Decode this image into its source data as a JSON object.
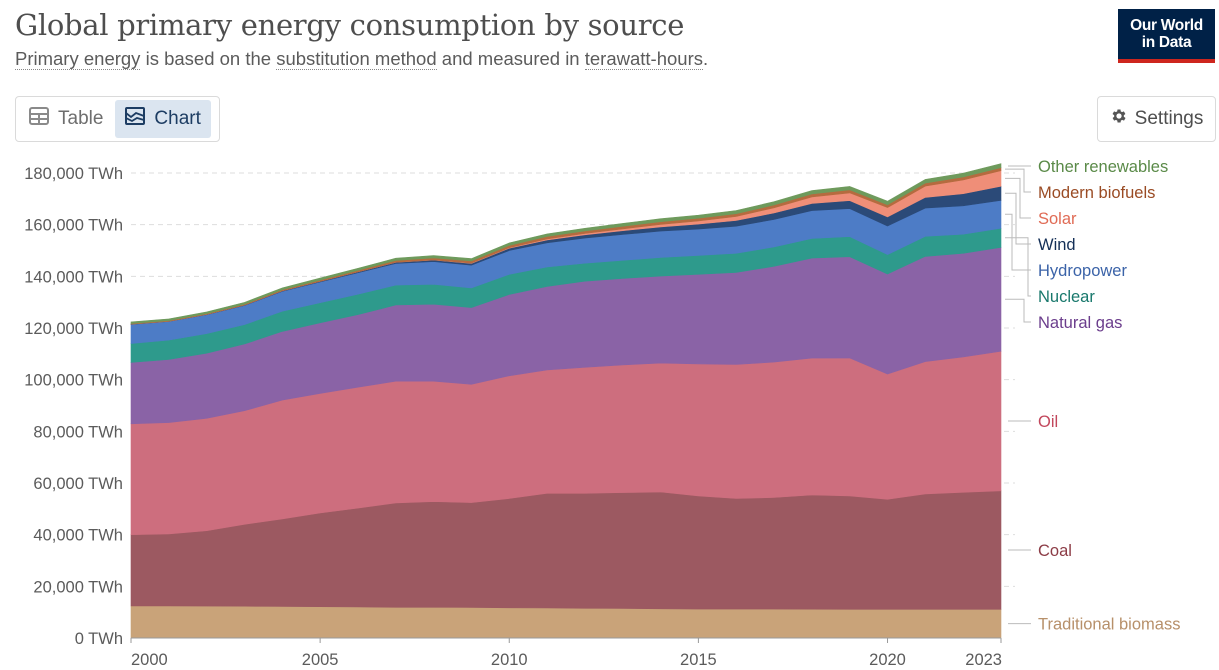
{
  "header": {
    "title": "Global primary energy consumption by source",
    "subtitle_parts": [
      "Primary energy",
      " is based on the ",
      "substitution method",
      " and measured in ",
      "terawatt-hours",
      "."
    ]
  },
  "logo": {
    "line1": "Our World",
    "line2": "in Data"
  },
  "tabs": [
    {
      "label": "Table",
      "icon": "table-icon",
      "active": false
    },
    {
      "label": "Chart",
      "icon": "chart-icon",
      "active": true
    }
  ],
  "settings": {
    "label": "Settings",
    "icon": "gear-icon"
  },
  "chart_data": {
    "type": "area",
    "stacked": true,
    "x": [
      2000,
      2001,
      2002,
      2003,
      2004,
      2005,
      2006,
      2007,
      2008,
      2009,
      2010,
      2011,
      2012,
      2013,
      2014,
      2015,
      2016,
      2017,
      2018,
      2019,
      2020,
      2021,
      2022,
      2023
    ],
    "xticks": [
      2000,
      2005,
      2010,
      2015,
      2020,
      2023
    ],
    "ylim": [
      0,
      180000
    ],
    "yticks": [
      0,
      20000,
      40000,
      60000,
      80000,
      100000,
      120000,
      140000,
      160000,
      180000
    ],
    "ytick_labels": [
      "0 TWh",
      "20,000 TWh",
      "40,000 TWh",
      "60,000 TWh",
      "80,000 TWh",
      "100,000 TWh",
      "120,000 TWh",
      "140,000 TWh",
      "160,000 TWh",
      "180,000 TWh"
    ],
    "grid": "horizontal-dashed",
    "legend": "right-inline",
    "series": [
      {
        "name": "Traditional biomass",
        "color": "#c9a379",
        "label_color": "#b7906a",
        "values": [
          12400,
          12400,
          12350,
          12300,
          12200,
          12100,
          12000,
          11900,
          11900,
          11800,
          11700,
          11600,
          11500,
          11400,
          11300,
          11200,
          11200,
          11200,
          11150,
          11100,
          11100,
          11100,
          11100,
          11100
        ]
      },
      {
        "name": "Coal",
        "color": "#9c5961",
        "label_color": "#8c3c46",
        "values": [
          27600,
          27900,
          29200,
          31700,
          33900,
          36300,
          38300,
          40400,
          40900,
          40600,
          42300,
          44400,
          44500,
          44900,
          45200,
          43800,
          42800,
          43200,
          44200,
          43900,
          42600,
          44700,
          45300,
          45900
        ]
      },
      {
        "name": "Oil",
        "color": "#cd6e7e",
        "label_color": "#c2475c",
        "values": [
          42900,
          43100,
          43500,
          44000,
          46000,
          46300,
          46800,
          47100,
          46600,
          45800,
          47500,
          47800,
          48800,
          49400,
          49900,
          51100,
          51900,
          52400,
          53000,
          53400,
          48500,
          51200,
          52400,
          54000
        ]
      },
      {
        "name": "Natural gas",
        "color": "#8a63a6",
        "label_color": "#6b3d8c",
        "values": [
          23800,
          24400,
          25200,
          25800,
          26600,
          27300,
          28100,
          29500,
          29800,
          29700,
          31500,
          32300,
          33300,
          33500,
          33700,
          34700,
          35600,
          37100,
          38700,
          39200,
          38700,
          40700,
          40100,
          40200
        ]
      },
      {
        "name": "Nuclear",
        "color": "#2e9a8c",
        "label_color": "#18786c",
        "values": [
          7300,
          7500,
          7600,
          7500,
          7800,
          7800,
          7900,
          7700,
          7700,
          7600,
          7800,
          7500,
          7000,
          7000,
          7200,
          7300,
          7400,
          7500,
          7600,
          7800,
          7500,
          7800,
          7400,
          7400
        ]
      },
      {
        "name": "Hydropower",
        "color": "#4d7cc6",
        "label_color": "#3b63a8",
        "values": [
          7400,
          7200,
          7300,
          7400,
          7700,
          8000,
          8300,
          8400,
          8800,
          8800,
          9200,
          9400,
          9700,
          10000,
          10200,
          10200,
          10500,
          10600,
          10800,
          10800,
          11100,
          10900,
          11000,
          10800
        ]
      },
      {
        "name": "Wind",
        "color": "#2b4a78",
        "label_color": "#142f57",
        "values": [
          80,
          100,
          130,
          160,
          210,
          280,
          350,
          450,
          580,
          720,
          880,
          1080,
          1260,
          1480,
          1650,
          1920,
          2210,
          2520,
          2790,
          3100,
          3490,
          4140,
          4690,
          5500
        ]
      },
      {
        "name": "Solar",
        "color": "#ef8e78",
        "label_color": "#e06b55",
        "values": [
          3,
          3,
          5,
          7,
          10,
          12,
          20,
          35,
          60,
          100,
          200,
          380,
          530,
          700,
          950,
          1200,
          1550,
          2000,
          2500,
          3000,
          3600,
          4400,
          5300,
          6000
        ]
      },
      {
        "name": "Modern biofuels",
        "color": "#b56b3f",
        "label_color": "#9a4b24",
        "values": [
          270,
          280,
          290,
          350,
          400,
          450,
          550,
          700,
          800,
          850,
          900,
          950,
          960,
          1000,
          1050,
          1070,
          1080,
          1100,
          1150,
          1180,
          1100,
          1150,
          1150,
          1200
        ]
      },
      {
        "name": "Other renewables",
        "color": "#6e9a5c",
        "label_color": "#5a8a48",
        "values": [
          600,
          630,
          660,
          690,
          720,
          760,
          800,
          840,
          870,
          900,
          950,
          1000,
          1050,
          1110,
          1160,
          1190,
          1230,
          1270,
          1310,
          1350,
          1400,
          1450,
          1500,
          1550
        ]
      }
    ]
  }
}
